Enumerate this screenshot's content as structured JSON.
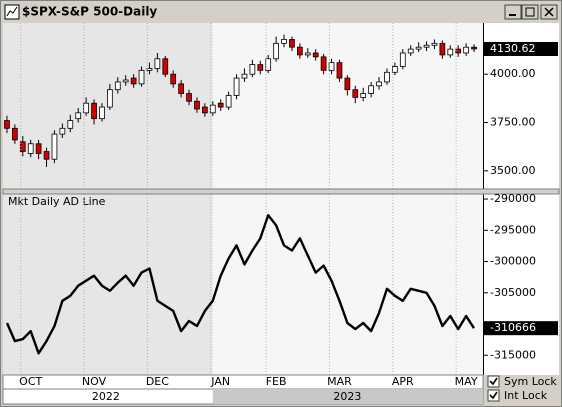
{
  "chart_data": [
    {
      "type": "candlestick",
      "title": "$SPX-S&P 500-Daily",
      "up_color": "#ffffff",
      "down_color": "#d40000",
      "xlim": [
        -0.5,
        59.5
      ],
      "ylim": [
        3411,
        4260
      ],
      "yticks": [
        {
          "value": 3500,
          "label": "3500.00"
        },
        {
          "value": 3750,
          "label": "3750.00"
        },
        {
          "value": 4000,
          "label": "4000.00"
        }
      ],
      "open": [
        3760,
        3720,
        3650,
        3590,
        3640,
        3600,
        3560,
        3690,
        3720,
        3770,
        3800,
        3850,
        3770,
        3830,
        3920,
        3960,
        3980,
        3950,
        4020,
        4030,
        4080,
        4000,
        3950,
        3900,
        3860,
        3830,
        3800,
        3850,
        3830,
        3890,
        3980,
        4000,
        4050,
        4020,
        4080,
        4160,
        4180,
        4140,
        4100,
        4110,
        4090,
        4020,
        4060,
        3980,
        3920,
        3880,
        3900,
        3940,
        3960,
        4010,
        4040,
        4110,
        4130,
        4140,
        4150,
        4160,
        4100,
        4130,
        4110,
        4140
      ],
      "high": [
        3785,
        3740,
        3680,
        3660,
        3660,
        3620,
        3710,
        3745,
        3790,
        3825,
        3880,
        3870,
        3850,
        3950,
        3985,
        3995,
        4000,
        4040,
        4060,
        4110,
        4095,
        4020,
        3970,
        3920,
        3880,
        3850,
        3860,
        3870,
        3910,
        4000,
        4030,
        4075,
        4070,
        4100,
        4195,
        4205,
        4195,
        4160,
        4135,
        4130,
        4105,
        4080,
        4075,
        3995,
        3940,
        3930,
        3960,
        3985,
        4030,
        4060,
        4130,
        4150,
        4165,
        4170,
        4180,
        4175,
        4150,
        4150,
        4160,
        4155
      ],
      "low": [
        3695,
        3640,
        3575,
        3570,
        3560,
        3520,
        3540,
        3670,
        3700,
        3750,
        3785,
        3740,
        3755,
        3815,
        3900,
        3940,
        3930,
        3935,
        4000,
        4010,
        3985,
        3930,
        3880,
        3840,
        3800,
        3780,
        3785,
        3810,
        3815,
        3870,
        3960,
        3985,
        4000,
        4005,
        4065,
        4140,
        4120,
        4080,
        4085,
        4070,
        4000,
        4000,
        3960,
        3890,
        3850,
        3860,
        3880,
        3920,
        3945,
        3995,
        4025,
        4095,
        4115,
        4120,
        4130,
        4080,
        4085,
        4090,
        4095,
        4115
      ],
      "close": [
        3720,
        3660,
        3600,
        3640,
        3590,
        3560,
        3690,
        3720,
        3760,
        3800,
        3850,
        3770,
        3830,
        3920,
        3960,
        3970,
        3950,
        4020,
        4030,
        4080,
        4000,
        3950,
        3900,
        3860,
        3820,
        3800,
        3840,
        3830,
        3890,
        3980,
        4000,
        4050,
        4020,
        4080,
        4160,
        4180,
        4140,
        4100,
        4110,
        4090,
        4020,
        4060,
        3980,
        3920,
        3880,
        3900,
        3940,
        3960,
        4010,
        4040,
        4110,
        4130,
        4140,
        4150,
        4160,
        4100,
        4130,
        4110,
        4140,
        4130.62
      ]
    },
    {
      "type": "line",
      "title": "Mkt Daily AD Line",
      "color": "#000000",
      "xlim": [
        -0.5,
        59.5
      ],
      "ylim": [
        -318000,
        -289350
      ],
      "yticks": [
        -290000,
        -295000,
        -300000,
        -305000,
        -315000
      ],
      "values": [
        -309840,
        -312740,
        -312420,
        -311130,
        -314680,
        -312740,
        -310320,
        -306290,
        -305480,
        -303870,
        -303060,
        -302260,
        -303870,
        -304680,
        -303390,
        -302260,
        -303870,
        -301770,
        -301130,
        -306290,
        -307100,
        -307900,
        -311130,
        -309520,
        -310320,
        -307900,
        -306290,
        -302260,
        -299520,
        -297420,
        -300450,
        -298230,
        -296290,
        -292580,
        -294190,
        -297420,
        -298230,
        -296290,
        -299030,
        -301770,
        -300650,
        -303060,
        -306290,
        -309840,
        -310810,
        -309840,
        -311130,
        -308230,
        -304360,
        -305480,
        -306290,
        -304360,
        -304680,
        -305000,
        -307100,
        -310320,
        -308710,
        -310810,
        -308710,
        -310666
      ],
      "xticks": [
        {
          "value": 3,
          "label": "OCT"
        },
        {
          "value": 11,
          "label": "NOV"
        },
        {
          "value": 19,
          "label": "DEC"
        },
        {
          "value": 27,
          "label": "JAN"
        },
        {
          "value": 34,
          "label": "FEB"
        },
        {
          "value": 42,
          "label": "MAR"
        },
        {
          "value": 50,
          "label": "APR"
        },
        {
          "value": 58,
          "label": "MAY"
        }
      ],
      "years": [
        {
          "value": 12.5,
          "label": "2022"
        },
        {
          "value": 43,
          "label": "2023"
        }
      ]
    }
  ],
  "controls": {
    "sym_lock": "Sym Lock",
    "int_lock": "Int Lock"
  }
}
